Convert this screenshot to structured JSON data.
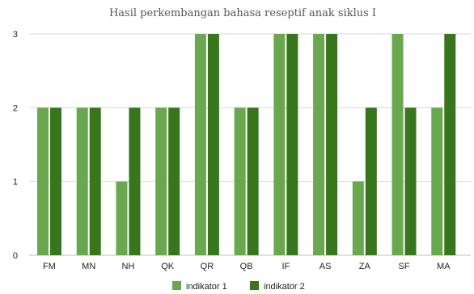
{
  "chart_data": {
    "type": "bar",
    "title": "Hasil perkembangan bahasa reseptif anak siklus I",
    "xlabel": "",
    "ylabel": "",
    "ylim": [
      0,
      3
    ],
    "yticks": [
      0,
      1,
      2,
      3
    ],
    "grid": true,
    "legend": "bottom",
    "categories": [
      "FM",
      "MN",
      "NH",
      "QK",
      "QR",
      "QB",
      "IF",
      "AS",
      "ZA",
      "SF",
      "MA"
    ],
    "series": [
      {
        "name": "indikator 1",
        "color": "#6aa84f",
        "values": [
          2,
          2,
          1,
          2,
          3,
          2,
          3,
          3,
          1,
          3,
          2
        ]
      },
      {
        "name": "indikator 2",
        "color": "#38761d",
        "values": [
          2,
          2,
          2,
          2,
          3,
          2,
          3,
          3,
          2,
          2,
          3
        ]
      }
    ]
  }
}
